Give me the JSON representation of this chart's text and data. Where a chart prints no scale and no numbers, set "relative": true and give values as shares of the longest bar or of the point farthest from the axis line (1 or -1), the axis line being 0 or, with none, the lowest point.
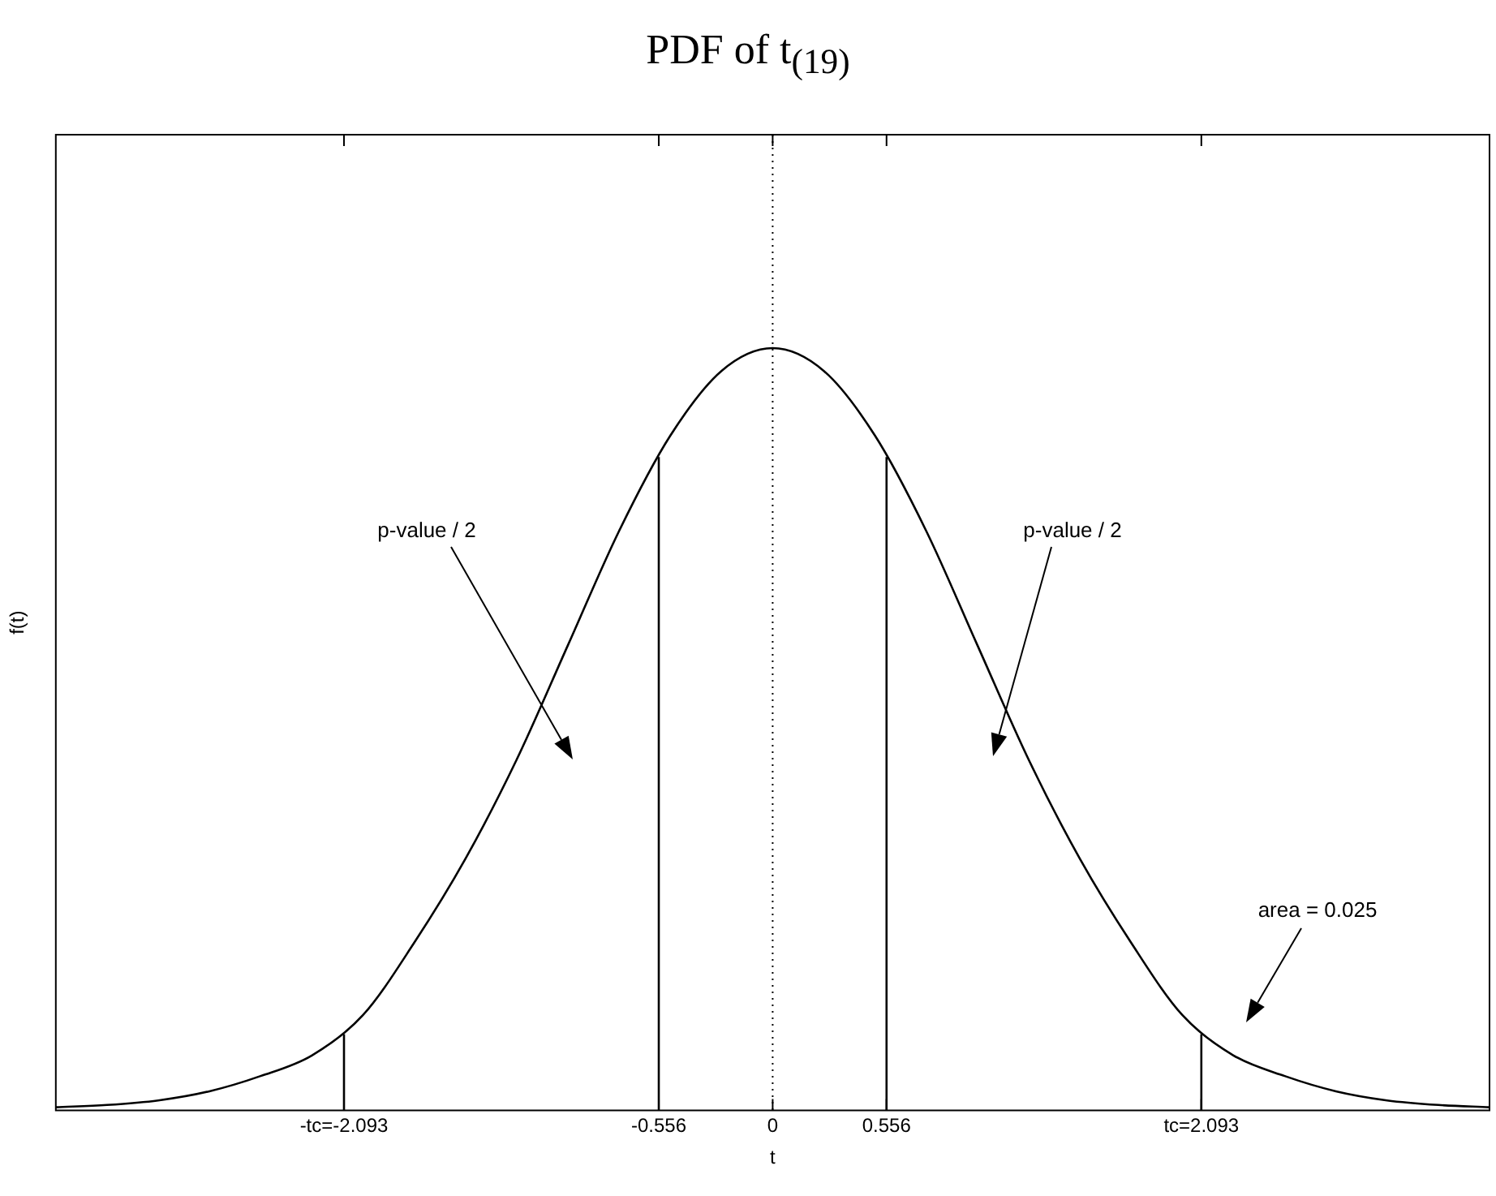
{
  "chart_data": {
    "type": "line",
    "title": "PDF of t$_{(19)}$",
    "xlabel": "t",
    "ylabel": "f(t)",
    "relative": true,
    "xlim": [
      -3.5,
      3.5
    ],
    "xticks": [
      {
        "value": -2.093,
        "label": "-tc=-2.093"
      },
      -0.556,
      0,
      0.556,
      {
        "value": 2.093,
        "label": "tc=2.093"
      }
    ],
    "series": [
      {
        "color": "#000000",
        "x": [
          -3.5,
          -3.25,
          -3.0,
          -2.75,
          -2.5,
          -2.25,
          -2.0,
          -1.75,
          -1.5,
          -1.25,
          -1.0,
          -0.75,
          -0.5,
          -0.25,
          0,
          0.25,
          0.5,
          0.75,
          1.0,
          1.25,
          1.5,
          1.75,
          2.0,
          2.25,
          2.5,
          2.75,
          3.0,
          3.25,
          3.5
        ],
        "values": [
          0.004,
          0.007,
          0.013,
          0.025,
          0.045,
          0.072,
          0.125,
          0.22,
          0.33,
          0.46,
          0.61,
          0.76,
          0.885,
          0.97,
          1.0,
          0.97,
          0.885,
          0.76,
          0.61,
          0.46,
          0.33,
          0.22,
          0.125,
          0.072,
          0.045,
          0.025,
          0.013,
          0.007,
          0.004
        ]
      },
      {
        "color": "#000000",
        "x": [
          -2.093,
          -2.093
        ],
        "values": [
          0,
          0.1
        ]
      },
      {
        "color": "#000000",
        "x": [
          -0.556,
          -0.556
        ],
        "values": [
          0,
          0.857
        ]
      },
      {
        "color": "#000000",
        "x": [
          0.556,
          0.556
        ],
        "values": [
          0,
          0.857
        ]
      },
      {
        "color": "#000000",
        "x": [
          2.093,
          2.093
        ],
        "values": [
          0,
          0.1
        ]
      }
    ],
    "ref_lines": [
      {
        "axis": "x",
        "value": 0,
        "line_style": "dotted",
        "color": "#000000"
      }
    ],
    "annotations": [
      "p-value / 2",
      "p-value / 2",
      "area = 0.025"
    ],
    "marker": "none",
    "line_style": "solid",
    "grid": false,
    "legend": false
  }
}
